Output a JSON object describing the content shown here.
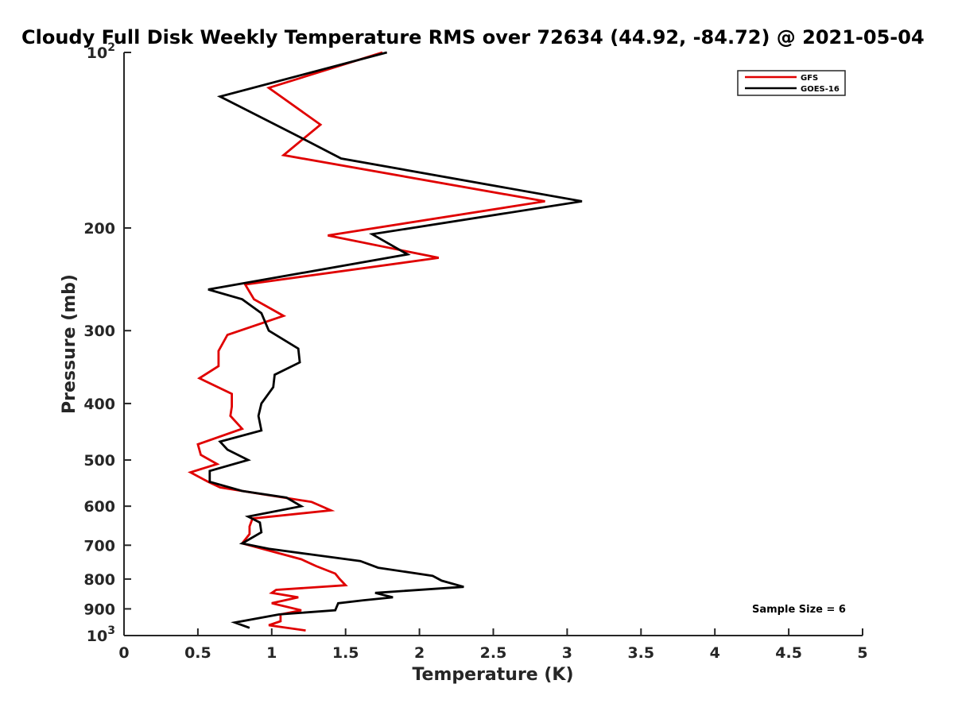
{
  "chart_data": {
    "type": "line",
    "title": "Cloudy Full Disk Weekly Temperature RMS over 72634 (44.92, -84.72) @ 2021-05-04",
    "xlabel": "Temperature (K)",
    "ylabel": "Pressure (mb)",
    "xlim": [
      0,
      5
    ],
    "ylim": [
      100,
      1000
    ],
    "y_scale": "log",
    "y_reversed": true,
    "grid": false,
    "legend_position": "top-right",
    "x_ticks": [
      "0",
      "0.5",
      "1",
      "1.5",
      "2",
      "2.5",
      "3",
      "3.5",
      "4",
      "4.5",
      "5"
    ],
    "y_ticks": [
      {
        "value": 100,
        "base": "10",
        "exp": "2"
      },
      {
        "value": 200,
        "label": "200"
      },
      {
        "value": 300,
        "label": "300"
      },
      {
        "value": 400,
        "label": "400"
      },
      {
        "value": 500,
        "label": "500"
      },
      {
        "value": 600,
        "label": "600"
      },
      {
        "value": 700,
        "label": "700"
      },
      {
        "value": 800,
        "label": "800"
      },
      {
        "value": 900,
        "label": "900"
      },
      {
        "value": 1000,
        "base": "10",
        "exp": "3"
      }
    ],
    "annotation": "Sample Size = 6",
    "series": [
      {
        "name": "GFS",
        "color": "#e00000",
        "points": [
          [
            1.75,
            100
          ],
          [
            0.98,
            115
          ],
          [
            1.33,
            133
          ],
          [
            1.08,
            150
          ],
          [
            2.85,
            180
          ],
          [
            1.38,
            206
          ],
          [
            2.13,
            225
          ],
          [
            0.82,
            250
          ],
          [
            0.88,
            265
          ],
          [
            1.08,
            283
          ],
          [
            0.7,
            305
          ],
          [
            0.64,
            325
          ],
          [
            0.64,
            345
          ],
          [
            0.51,
            362
          ],
          [
            0.73,
            385
          ],
          [
            0.73,
            405
          ],
          [
            0.72,
            420
          ],
          [
            0.8,
            442
          ],
          [
            0.5,
            470
          ],
          [
            0.52,
            490
          ],
          [
            0.63,
            508
          ],
          [
            0.45,
            525
          ],
          [
            0.57,
            545
          ],
          [
            0.65,
            557
          ],
          [
            0.93,
            572
          ],
          [
            1.27,
            590
          ],
          [
            1.4,
            610
          ],
          [
            0.87,
            630
          ],
          [
            0.85,
            650
          ],
          [
            0.85,
            670
          ],
          [
            0.8,
            695
          ],
          [
            1.2,
            740
          ],
          [
            1.3,
            760
          ],
          [
            1.43,
            783
          ],
          [
            1.46,
            800
          ],
          [
            1.5,
            820
          ],
          [
            1.03,
            835
          ],
          [
            1.0,
            845
          ],
          [
            1.18,
            860
          ],
          [
            1.0,
            880
          ],
          [
            1.2,
            905
          ],
          [
            1.06,
            920
          ],
          [
            1.06,
            945
          ],
          [
            0.98,
            960
          ],
          [
            1.23,
            980
          ]
        ]
      },
      {
        "name": "GOES-16",
        "color": "#000000",
        "points": [
          [
            1.78,
            100
          ],
          [
            0.65,
            119
          ],
          [
            1.15,
            138
          ],
          [
            1.47,
            152
          ],
          [
            3.1,
            180
          ],
          [
            1.68,
            205
          ],
          [
            1.92,
            222
          ],
          [
            0.57,
            255
          ],
          [
            0.8,
            265
          ],
          [
            0.93,
            280
          ],
          [
            0.98,
            300
          ],
          [
            1.18,
            322
          ],
          [
            1.19,
            340
          ],
          [
            1.02,
            357
          ],
          [
            1.01,
            375
          ],
          [
            0.93,
            400
          ],
          [
            0.91,
            420
          ],
          [
            0.93,
            445
          ],
          [
            0.65,
            465
          ],
          [
            0.7,
            480
          ],
          [
            0.84,
            500
          ],
          [
            0.58,
            522
          ],
          [
            0.58,
            545
          ],
          [
            0.8,
            565
          ],
          [
            1.1,
            580
          ],
          [
            1.2,
            600
          ],
          [
            0.84,
            625
          ],
          [
            0.92,
            640
          ],
          [
            0.93,
            665
          ],
          [
            0.8,
            695
          ],
          [
            0.98,
            710
          ],
          [
            1.25,
            725
          ],
          [
            1.6,
            745
          ],
          [
            1.72,
            765
          ],
          [
            2.09,
            790
          ],
          [
            2.15,
            805
          ],
          [
            2.3,
            825
          ],
          [
            1.7,
            845
          ],
          [
            1.82,
            860
          ],
          [
            1.62,
            870
          ],
          [
            1.45,
            880
          ],
          [
            1.43,
            905
          ],
          [
            1.05,
            920
          ],
          [
            0.75,
            950
          ],
          [
            0.85,
            970
          ]
        ]
      }
    ]
  }
}
